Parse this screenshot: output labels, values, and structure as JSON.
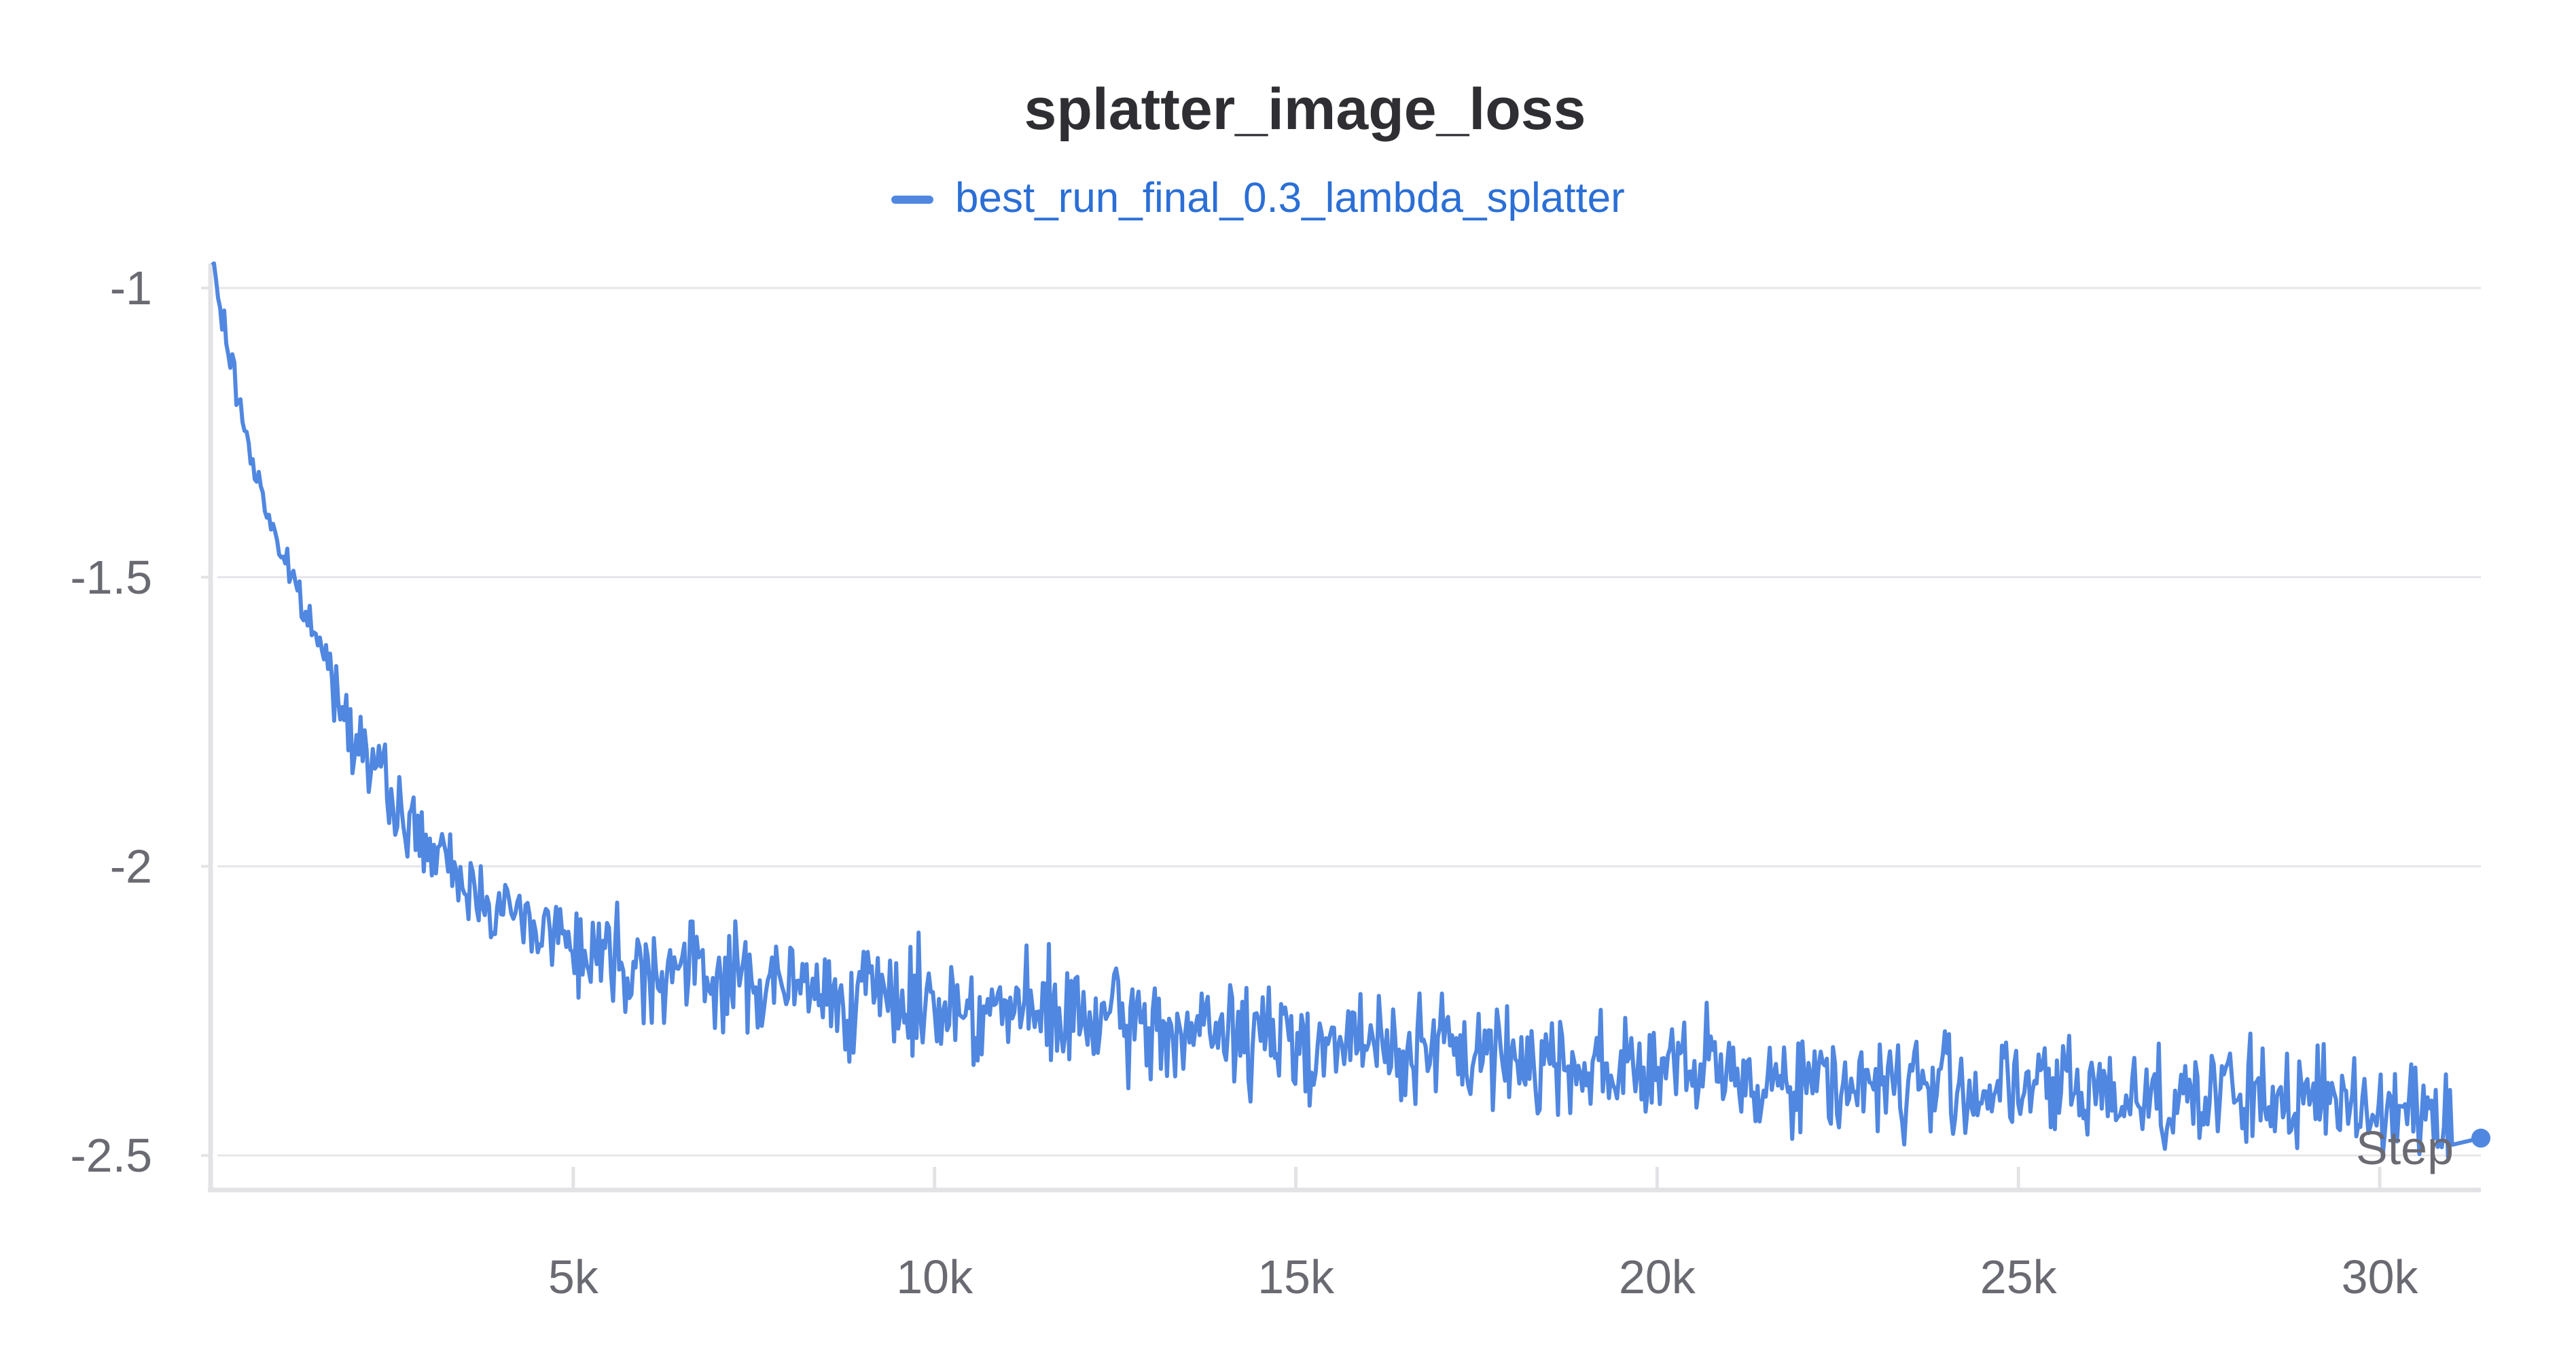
{
  "chart_data": {
    "type": "line",
    "title": "splatter_image_loss",
    "xlabel": "Step",
    "ylabel": "",
    "xlim": [
      0,
      31400
    ],
    "ylim": [
      -2.555,
      -0.96
    ],
    "x_ticks": [
      5000,
      10000,
      15000,
      20000,
      25000,
      30000
    ],
    "x_tick_labels": [
      "5k",
      "10k",
      "15k",
      "20k",
      "25k",
      "30k"
    ],
    "y_ticks": [
      -1,
      -1.5,
      -2,
      -2.5
    ],
    "y_tick_labels": [
      "-1",
      "-1.5",
      "-2",
      "-2.5"
    ],
    "grid": true,
    "legend_position": "top-center",
    "series": [
      {
        "name": "best_run_final_0.3_lambda_splatter",
        "color": "#5087e0",
        "label_color": "#2b6fd6",
        "x": [
          0,
          250,
          500,
          750,
          1000,
          1250,
          1500,
          1750,
          2000,
          2250,
          2500,
          2750,
          3000,
          3250,
          3500,
          3750,
          4000,
          4250,
          4500,
          4750,
          5000,
          5500,
          6000,
          6500,
          7000,
          7500,
          8000,
          8500,
          9000,
          9500,
          10000,
          11000,
          12000,
          13000,
          14000,
          15000,
          16000,
          17000,
          18000,
          19000,
          20000,
          21000,
          22000,
          23000,
          24000,
          25000,
          26000,
          27000,
          28000,
          29000,
          30000,
          31000,
          31400
        ],
        "y": [
          -0.96,
          -1.12,
          -1.27,
          -1.38,
          -1.47,
          -1.55,
          -1.62,
          -1.7,
          -1.77,
          -1.83,
          -1.89,
          -1.93,
          -1.97,
          -2.0,
          -2.03,
          -2.05,
          -2.07,
          -2.09,
          -2.1,
          -2.11,
          -2.13,
          -2.15,
          -2.17,
          -2.18,
          -2.19,
          -2.2,
          -2.21,
          -2.22,
          -2.225,
          -2.23,
          -2.235,
          -2.25,
          -2.265,
          -2.28,
          -2.29,
          -2.3,
          -2.31,
          -2.32,
          -2.33,
          -2.34,
          -2.35,
          -2.36,
          -2.37,
          -2.375,
          -2.38,
          -2.385,
          -2.39,
          -2.395,
          -2.4,
          -2.405,
          -2.41,
          -2.42,
          -2.47
        ]
      }
    ]
  }
}
